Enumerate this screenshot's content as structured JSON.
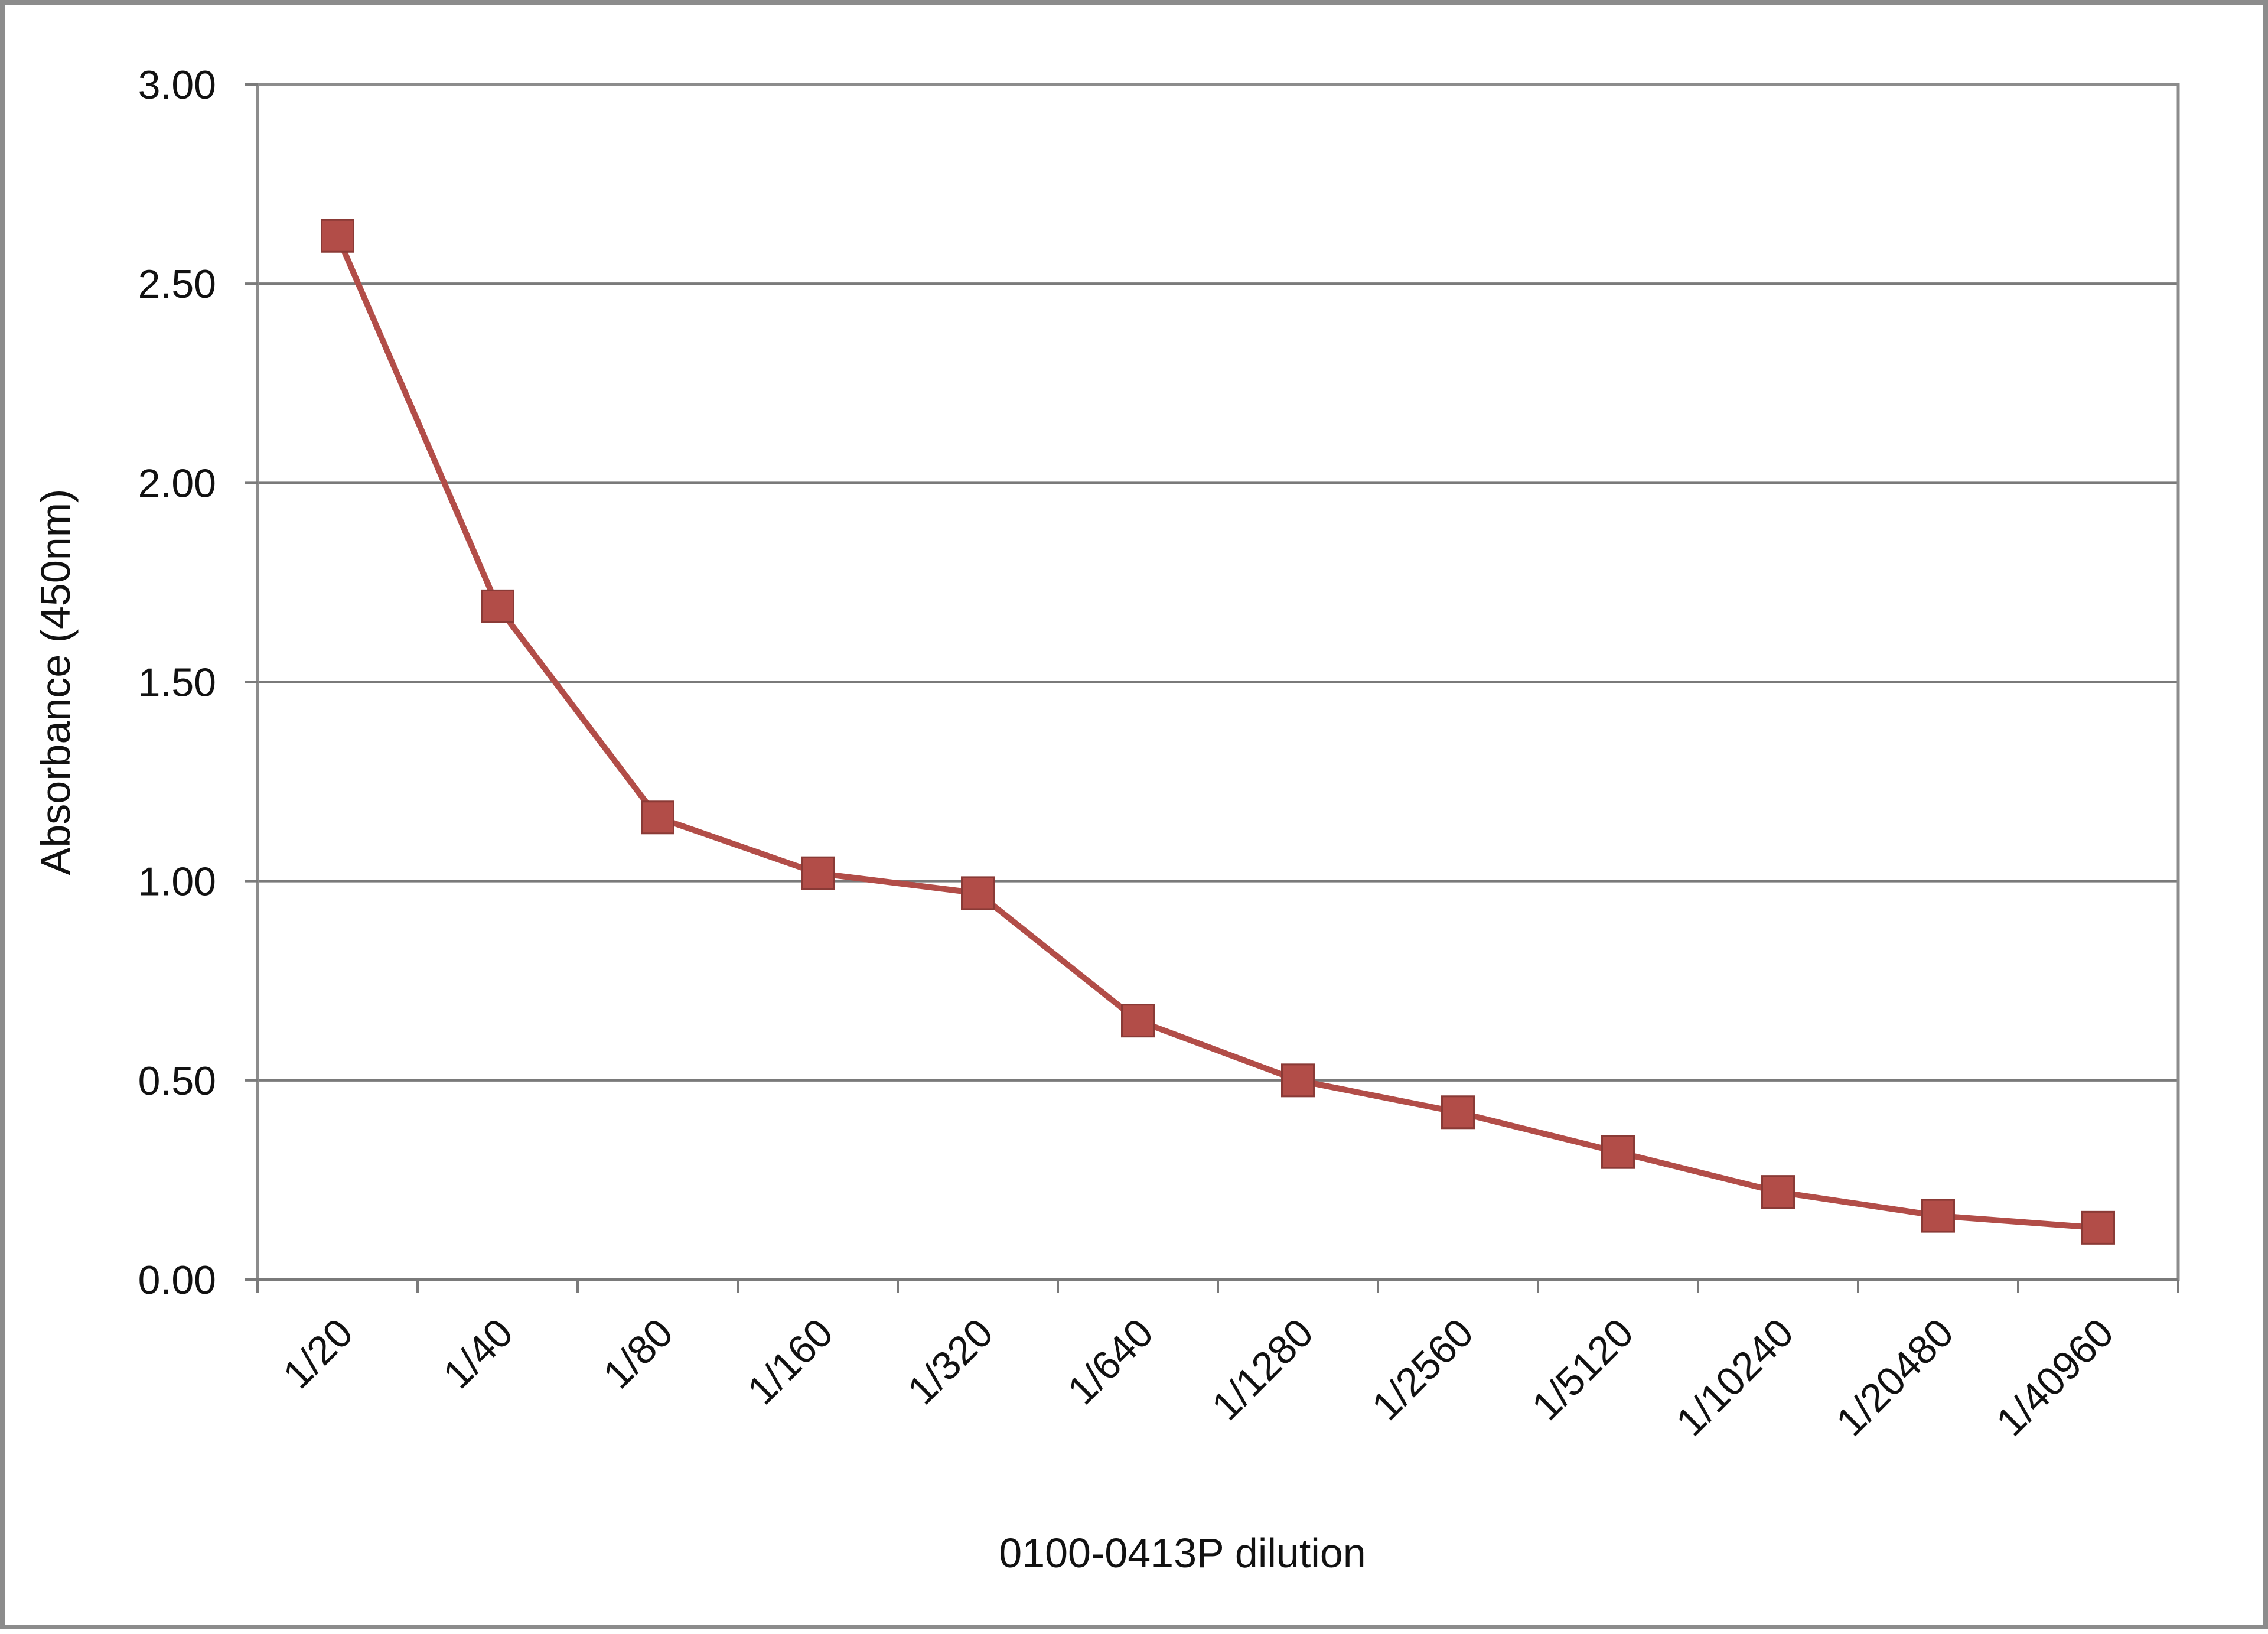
{
  "chart_data": {
    "type": "line",
    "title": "",
    "xlabel": "0100-0413P dilution",
    "ylabel": "Absorbance (450nm)",
    "categories": [
      "1/20",
      "1/40",
      "1/80",
      "1/160",
      "1/320",
      "1/640",
      "1/1280",
      "1/2560",
      "1/5120",
      "1/10240",
      "1/20480",
      "1/40960"
    ],
    "series": [
      {
        "values": [
          2.62,
          1.69,
          1.16,
          1.02,
          0.97,
          0.65,
          0.5,
          0.42,
          0.32,
          0.22,
          0.16,
          0.13
        ],
        "color": "#b24d48",
        "marker": "square"
      }
    ],
    "ylim": [
      0,
      3.0
    ],
    "yticks": [
      "0.00",
      "0.50",
      "1.00",
      "1.50",
      "2.00",
      "2.50",
      "3.00"
    ],
    "grid": true,
    "legend": "none"
  }
}
